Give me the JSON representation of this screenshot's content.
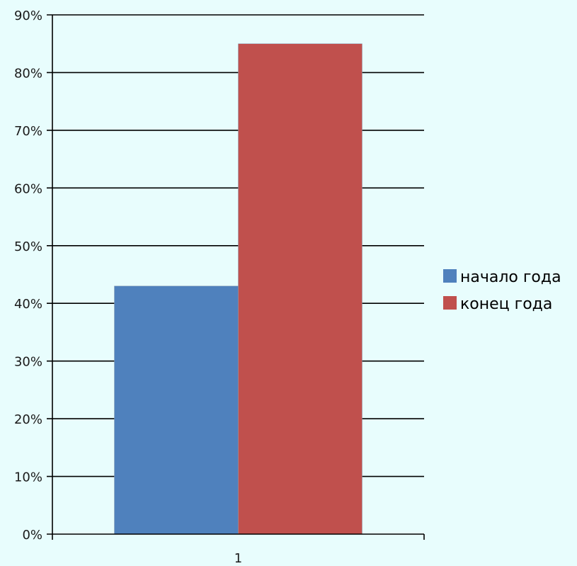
{
  "chart_data": {
    "type": "bar",
    "categories": [
      "1"
    ],
    "series": [
      {
        "name": "начало года",
        "values": [
          0.43
        ],
        "color": "#4f81bd"
      },
      {
        "name": "конец года",
        "values": [
          0.85
        ],
        "color": "#c0504d"
      }
    ],
    "title": "",
    "xlabel": "",
    "ylabel": "",
    "ylim": [
      0,
      0.9
    ],
    "yticks": [
      0,
      0.1,
      0.2,
      0.3,
      0.4,
      0.5,
      0.6,
      0.7,
      0.8,
      0.9
    ],
    "ytick_labels": [
      "0%",
      "10%",
      "20%",
      "30%",
      "40%",
      "50%",
      "60%",
      "70%",
      "80%",
      "90%"
    ],
    "grid": true,
    "legend": "right",
    "background_color": "#e8fdfd",
    "gridline_color": "#000000"
  }
}
